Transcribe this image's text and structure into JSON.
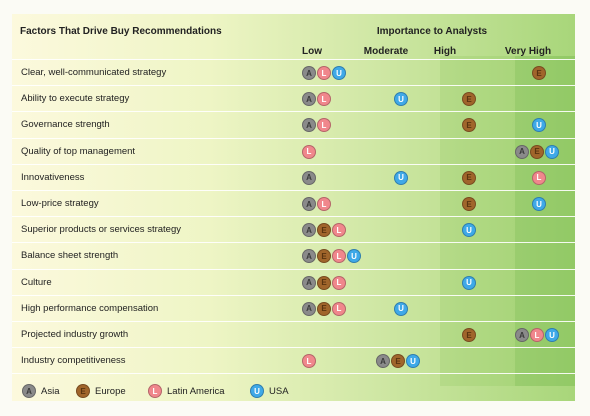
{
  "title": "Factors That Drive Buy Recommendations",
  "importance_heading": "Importance to Analysts",
  "columns": [
    "Low",
    "Moderate",
    "High",
    "Very High"
  ],
  "rows": [
    {
      "label": "Clear, well-communicated strategy",
      "Low": [
        "A",
        "L",
        "U"
      ],
      "Moderate": [],
      "High": [],
      "Very High": [
        "E"
      ]
    },
    {
      "label": "Ability to execute strategy",
      "Low": [
        "A",
        "L"
      ],
      "Moderate": [
        "U"
      ],
      "High": [
        "E"
      ],
      "Very High": []
    },
    {
      "label": "Governance strength",
      "Low": [
        "A",
        "L"
      ],
      "Moderate": [],
      "High": [
        "E"
      ],
      "Very High": [
        "U"
      ]
    },
    {
      "label": "Quality of top management",
      "Low": [
        "L"
      ],
      "Moderate": [],
      "High": [],
      "Very High": [
        "A",
        "E",
        "U"
      ]
    },
    {
      "label": "Innovativeness",
      "Low": [
        "A"
      ],
      "Moderate": [
        "U"
      ],
      "High": [
        "E"
      ],
      "Very High": [
        "L"
      ]
    },
    {
      "label": "Low-price strategy",
      "Low": [
        "A",
        "L"
      ],
      "Moderate": [],
      "High": [
        "E"
      ],
      "Very High": [
        "U"
      ]
    },
    {
      "label": "Superior products or services strategy",
      "Low": [
        "A",
        "E",
        "L"
      ],
      "Moderate": [],
      "High": [
        "U"
      ],
      "Very High": []
    },
    {
      "label": "Balance sheet strength",
      "Low": [
        "A",
        "E",
        "L",
        "U"
      ],
      "Moderate": [],
      "High": [],
      "Very High": []
    },
    {
      "label": "Culture",
      "Low": [
        "A",
        "E",
        "L"
      ],
      "Moderate": [],
      "High": [
        "U"
      ],
      "Very High": []
    },
    {
      "label": "High performance compensation",
      "Low": [
        "A",
        "E",
        "L"
      ],
      "Moderate": [
        "U"
      ],
      "High": [],
      "Very High": []
    },
    {
      "label": "Projected industry growth",
      "Low": [],
      "Moderate": [],
      "High": [
        "E"
      ],
      "Very High": [
        "A",
        "L",
        "U"
      ]
    },
    {
      "label": "Industry competitiveness",
      "Low": [
        "L"
      ],
      "Moderate": [
        "A",
        "E",
        "U"
      ],
      "High": [],
      "Very High": []
    }
  ],
  "legend": [
    {
      "code": "A",
      "label": "Asia"
    },
    {
      "code": "E",
      "label": "Europe"
    },
    {
      "code": "L",
      "label": "Latin America"
    },
    {
      "code": "U",
      "label": "USA"
    }
  ],
  "colors": {
    "A": "#8a8a8a",
    "E": "#a0652b",
    "L": "#f0878c",
    "U": "#3fa9e8"
  }
}
